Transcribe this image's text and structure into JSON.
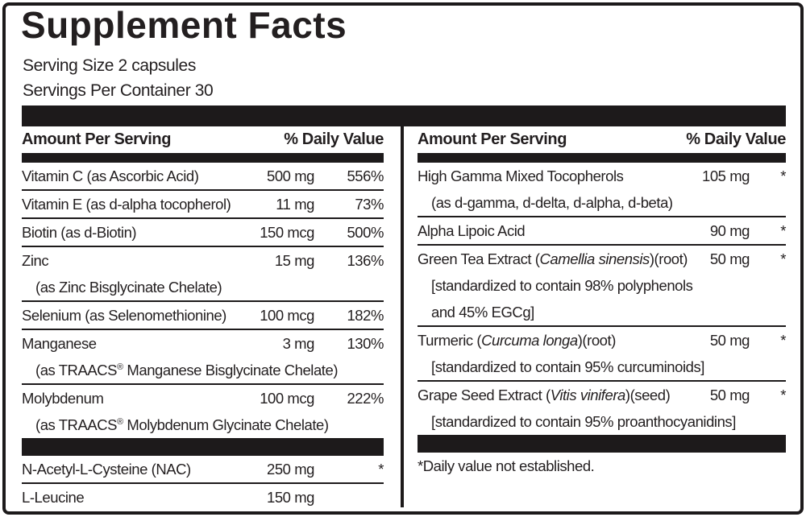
{
  "title": "Supplement Facts",
  "serving": {
    "size_label": "Serving Size 2 capsules",
    "per_container_label": "Servings Per Container 30"
  },
  "headers": {
    "amount": "Amount Per Serving",
    "dv": "% Daily Value"
  },
  "left": {
    "rows": [
      {
        "name": "Vitamin C (as Ascorbic Acid)",
        "amount": "500 mg",
        "dv": "556%"
      },
      {
        "name": "Vitamin E (as d-alpha tocopherol)",
        "amount": "11 mg",
        "dv": "73%"
      },
      {
        "name": "Biotin (as d-Biotin)",
        "amount": "150 mcg",
        "dv": "500%"
      },
      {
        "name": "Zinc",
        "amount": "15 mg",
        "dv": "136%",
        "sub": "(as Zinc Bisglycinate Chelate)"
      },
      {
        "name": "Selenium (as Selenomethionine)",
        "amount": "100 mcg",
        "dv": "182%"
      },
      {
        "name": "Manganese",
        "amount": "3 mg",
        "dv": "130%",
        "sub_pre": "(as TRAACS",
        "sub_sup": "®",
        "sub_post": " Manganese Bisglycinate Chelate)"
      },
      {
        "name": "Molybdenum",
        "amount": "100 mcg",
        "dv": "222%",
        "sub_pre": "(as TRAACS",
        "sub_sup": "®",
        "sub_post": " Molybdenum Glycinate Chelate)"
      }
    ],
    "amino_rows": [
      {
        "name": "N-Acetyl-L-Cysteine (NAC)",
        "amount": "250 mg",
        "dv": "*"
      },
      {
        "name": "L-Leucine",
        "amount": "150 mg",
        "dv": ""
      }
    ]
  },
  "right": {
    "rows": [
      {
        "name": "High Gamma Mixed Tocopherols",
        "amount": "105 mg",
        "dv": "*",
        "sub": "(as d-gamma, d-delta, d-alpha, d-beta)"
      },
      {
        "name": "Alpha Lipoic Acid",
        "amount": "90 mg",
        "dv": "*"
      },
      {
        "name_pre": "Green Tea Extract (",
        "name_it": "Camellia sinensis",
        "name_post": ")(root)",
        "amount": "50 mg",
        "dv": "*",
        "subs": [
          "[standardized to contain 98% polyphenols",
          "and 45% EGCg]"
        ]
      },
      {
        "name_pre": "Turmeric (",
        "name_it": "Curcuma longa",
        "name_post": ")(root)",
        "amount": "50 mg",
        "dv": "*",
        "sub": "[standardized to contain 95% curcuminoids]"
      },
      {
        "name_pre": "Grape Seed Extract (",
        "name_it": "Vitis vinifera",
        "name_post": ")(seed)",
        "amount": "50 mg",
        "dv": "*",
        "sub": "[standardized to contain 95% proanthocyanidins]"
      }
    ],
    "footnote": "*Daily value not established."
  },
  "colors": {
    "ink": "#231f20",
    "bar": "#1d1a1b",
    "background": "#ffffff"
  }
}
